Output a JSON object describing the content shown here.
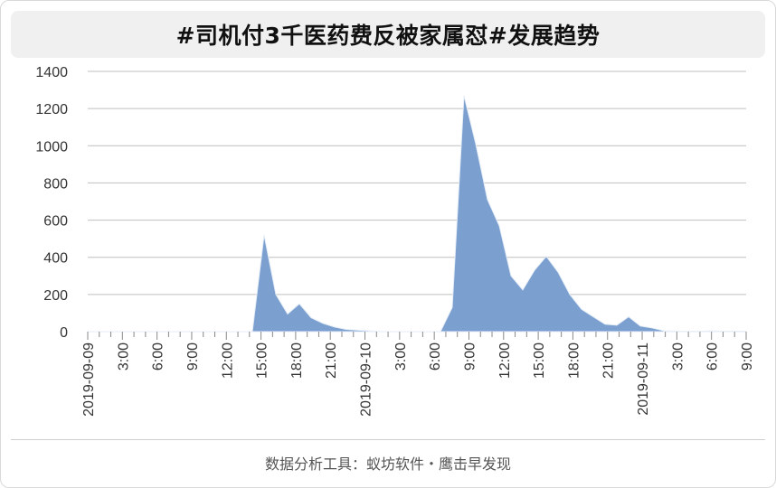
{
  "title": "#司机付3千医药费反被家属怼#发展趋势",
  "footer": "数据分析工具：蚁坊软件・鹰击早发现",
  "colors": {
    "area_fill": "#7b9fcf",
    "area_stroke": "#e6eef8",
    "grid": "#bfbfbf",
    "title_bg": "#f0f0f0"
  },
  "chart_data": {
    "type": "area",
    "xlabel": "",
    "ylabel": "",
    "ylim": [
      0,
      1400
    ],
    "yticks": [
      0,
      200,
      400,
      600,
      800,
      1000,
      1200,
      1400
    ],
    "grid": true,
    "legend": "none",
    "x_tick_labels": [
      {
        "hour": 0,
        "label": "2019-09-09"
      },
      {
        "hour": 3,
        "label": "3:00"
      },
      {
        "hour": 6,
        "label": "6:00"
      },
      {
        "hour": 9,
        "label": "9:00"
      },
      {
        "hour": 12,
        "label": "12:00"
      },
      {
        "hour": 15,
        "label": "15:00"
      },
      {
        "hour": 18,
        "label": "18:00"
      },
      {
        "hour": 21,
        "label": "21:00"
      },
      {
        "hour": 24,
        "label": "2019-09-10"
      },
      {
        "hour": 27,
        "label": "3:00"
      },
      {
        "hour": 30,
        "label": "6:00"
      },
      {
        "hour": 33,
        "label": "9:00"
      },
      {
        "hour": 36,
        "label": "12:00"
      },
      {
        "hour": 39,
        "label": "15:00"
      },
      {
        "hour": 42,
        "label": "18:00"
      },
      {
        "hour": 45,
        "label": "21:00"
      },
      {
        "hour": 48,
        "label": "2019-09-11"
      },
      {
        "hour": 51,
        "label": "3:00"
      },
      {
        "hour": 54,
        "label": "6:00"
      },
      {
        "hour": 57,
        "label": "9:00"
      }
    ],
    "hour_range": [
      0,
      57
    ],
    "values": [
      0,
      0,
      0,
      0,
      0,
      0,
      0,
      0,
      0,
      0,
      0,
      0,
      0,
      0,
      0,
      520,
      200,
      95,
      150,
      75,
      45,
      25,
      12,
      8,
      5,
      0,
      0,
      0,
      0,
      0,
      0,
      130,
      1270,
      1010,
      710,
      570,
      300,
      225,
      330,
      405,
      320,
      200,
      120,
      80,
      40,
      35,
      80,
      30,
      20,
      5,
      3,
      2,
      2,
      4,
      2,
      3,
      2
    ]
  }
}
